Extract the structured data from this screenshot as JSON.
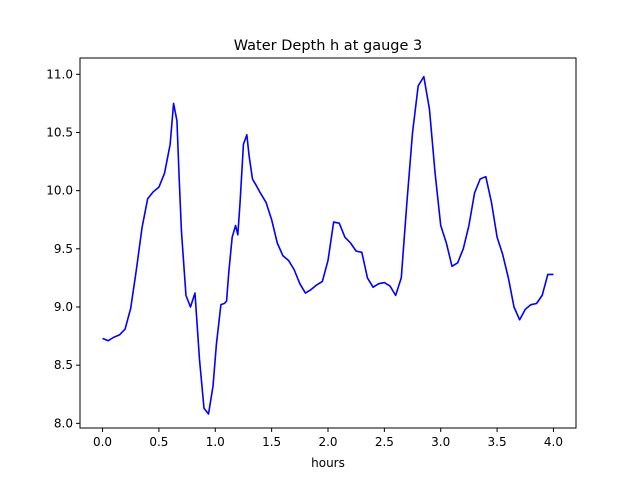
{
  "chart_data": {
    "type": "line",
    "title": "Water Depth h at gauge 3",
    "xlabel": "hours",
    "ylabel": "",
    "xlim": [
      -0.2,
      4.2
    ],
    "ylim": [
      7.96,
      11.14
    ],
    "xticks": [
      0.0,
      0.5,
      1.0,
      1.5,
      2.0,
      2.5,
      3.0,
      3.5,
      4.0
    ],
    "xtick_labels": [
      "0.0",
      "0.5",
      "1.0",
      "1.5",
      "2.0",
      "2.5",
      "3.0",
      "3.5",
      "4.0"
    ],
    "yticks": [
      8.0,
      8.5,
      9.0,
      9.5,
      10.0,
      10.5,
      11.0
    ],
    "ytick_labels": [
      "8.0",
      "8.5",
      "9.0",
      "9.5",
      "10.0",
      "10.5",
      "11.0"
    ],
    "grid": false,
    "series": [
      {
        "color": "#0000ff",
        "x": [
          0.0,
          0.05,
          0.1,
          0.15,
          0.2,
          0.25,
          0.3,
          0.35,
          0.4,
          0.45,
          0.5,
          0.55,
          0.6,
          0.63,
          0.66,
          0.68,
          0.7,
          0.74,
          0.78,
          0.82,
          0.86,
          0.9,
          0.94,
          0.98,
          1.01,
          1.05,
          1.08,
          1.1,
          1.12,
          1.15,
          1.18,
          1.2,
          1.22,
          1.25,
          1.28,
          1.3,
          1.33,
          1.36,
          1.4,
          1.45,
          1.5,
          1.55,
          1.6,
          1.65,
          1.7,
          1.75,
          1.8,
          1.85,
          1.9,
          1.95,
          2.0,
          2.05,
          2.1,
          2.15,
          2.2,
          2.25,
          2.3,
          2.35,
          2.4,
          2.45,
          2.5,
          2.55,
          2.6,
          2.65,
          2.7,
          2.75,
          2.8,
          2.85,
          2.9,
          2.95,
          3.0,
          3.05,
          3.1,
          3.15,
          3.2,
          3.25,
          3.3,
          3.35,
          3.4,
          3.45,
          3.5,
          3.55,
          3.6,
          3.65,
          3.7,
          3.75,
          3.8,
          3.85,
          3.9,
          3.95,
          4.0
        ],
        "y": [
          8.73,
          8.71,
          8.74,
          8.76,
          8.81,
          8.99,
          9.32,
          9.68,
          9.93,
          9.99,
          10.03,
          10.15,
          10.4,
          10.75,
          10.6,
          10.1,
          9.65,
          9.1,
          9.0,
          9.12,
          8.55,
          8.13,
          8.08,
          8.32,
          8.68,
          9.02,
          9.03,
          9.05,
          9.3,
          9.6,
          9.7,
          9.62,
          9.9,
          10.4,
          10.48,
          10.3,
          10.1,
          10.05,
          9.98,
          9.9,
          9.75,
          9.55,
          9.44,
          9.4,
          9.32,
          9.2,
          9.12,
          9.15,
          9.19,
          9.22,
          9.4,
          9.73,
          9.72,
          9.6,
          9.55,
          9.48,
          9.47,
          9.25,
          9.17,
          9.2,
          9.21,
          9.18,
          9.1,
          9.25,
          9.9,
          10.5,
          10.9,
          10.98,
          10.7,
          10.15,
          9.7,
          9.55,
          9.35,
          9.38,
          9.5,
          9.7,
          9.98,
          10.1,
          10.12,
          9.9,
          9.6,
          9.45,
          9.25,
          9.0,
          8.89,
          8.98,
          9.02,
          9.03,
          9.1,
          9.28,
          9.28
        ]
      }
    ]
  }
}
